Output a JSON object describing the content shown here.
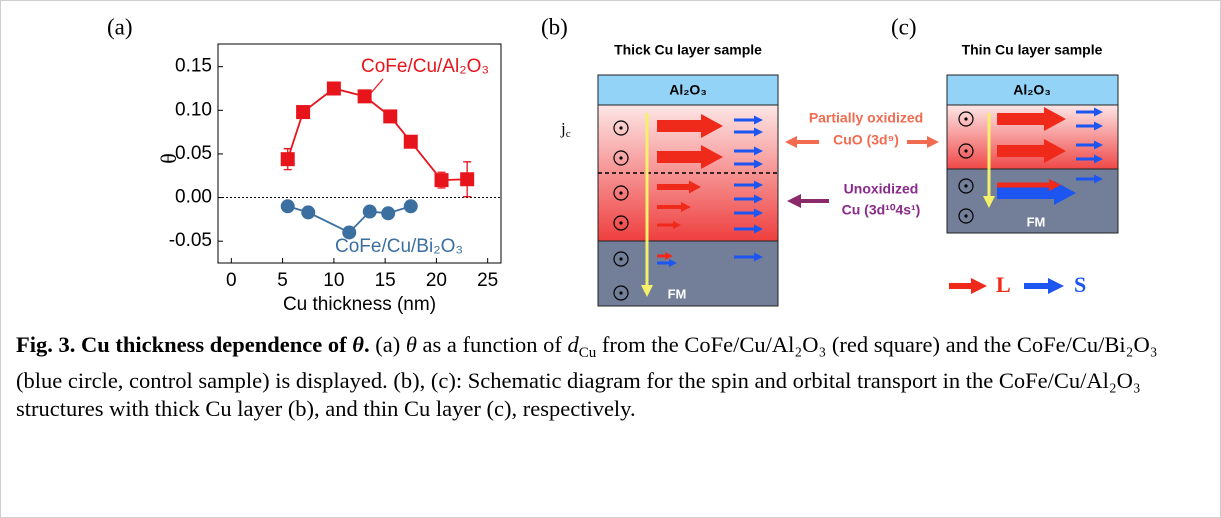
{
  "chart_data": {
    "type": "scatter",
    "xlabel": "Cu thickness (nm)",
    "ylabel": "θ",
    "xlim": [
      -1.3,
      26.3
    ],
    "xticks": [
      0,
      5,
      10,
      15,
      20,
      25
    ],
    "ylim": [
      -0.075,
      0.176
    ],
    "yticks": [
      {
        "value": -0.05,
        "label": "-0.05"
      },
      {
        "value": 0,
        "label": "0.00"
      },
      {
        "value": 0.05,
        "label": "0.05"
      },
      {
        "value": 0.1,
        "label": "0.10"
      },
      {
        "value": 0.15,
        "label": "0.15"
      }
    ],
    "zero_line": true,
    "series": [
      {
        "name": "CoFe/Cu/Al₂O₃",
        "color": "#e8141c",
        "marker": "square",
        "x": [
          5.5,
          7,
          10,
          13,
          15.5,
          17.5,
          20.5,
          23
        ],
        "values": [
          0.044,
          0.098,
          0.125,
          0.116,
          0.093,
          0.064,
          0.02,
          0.021
        ],
        "errors": [
          0.012,
          0.003,
          0.003,
          0.004,
          0.005,
          0.003,
          0.009,
          0.02
        ]
      },
      {
        "name": "CoFe/Cu/Bi₂O₃",
        "color": "#3b6fa0",
        "marker": "circle",
        "x": [
          5.5,
          7.5,
          11.5,
          13.5,
          15.3,
          17.5
        ],
        "values": [
          -0.01,
          -0.017,
          -0.04,
          -0.016,
          -0.018,
          -0.01
        ]
      }
    ]
  },
  "panels": {
    "a": "(a)",
    "b": "(b)",
    "c": "(c)"
  },
  "diagram_b": {
    "title": "Thick Cu layer sample",
    "top_layer": "Al₂O₃",
    "current": "j",
    "current_sub": "c",
    "bottom_layer": "FM"
  },
  "diagram_c": {
    "title": "Thin Cu layer sample",
    "top_layer": "Al₂O₃",
    "bottom_layer": "FM"
  },
  "annotations": {
    "oxidized": [
      "Partially oxidized",
      "CuO (3d⁹)"
    ],
    "unoxidized": [
      "Unoxidized",
      "Cu (3d¹⁰4s¹)"
    ]
  },
  "legend": {
    "orbital": "L",
    "spin": "S"
  },
  "caption": {
    "heading": [
      "Fig. 3. Cu thickness dependence of ",
      "θ",
      "."
    ],
    "body": [
      " (a) ",
      "θ",
      " as a function of ",
      "d",
      "Cu",
      " from the CoFe/Cu/Al₂O₃ (red square) and the CoFe/Cu/Bi₂O₃ (blue circle, control sample) is displayed. (b), (c): Schematic diagram for the spin and orbital transport in the CoFe/Cu/Al₂O₃ structures with thick Cu layer (b), and thin Cu layer (c), respectively."
    ]
  }
}
